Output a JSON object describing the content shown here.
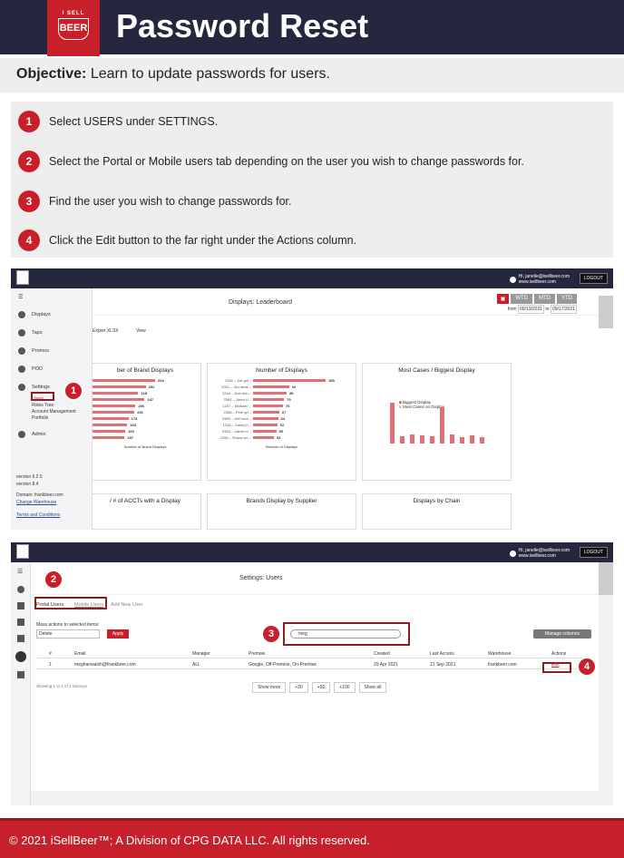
{
  "header": {
    "title": "Password Reset",
    "logo_text_top": "I SELL",
    "logo_text": "BEER"
  },
  "objective": {
    "label": "Objective:",
    "text": "Learn to update passwords for users."
  },
  "steps": [
    {
      "num": "1",
      "text": "Select USERS under SETTINGS."
    },
    {
      "num": "2",
      "text": "Select the Portal or Mobile users tab depending on the user you wish to change passwords for."
    },
    {
      "num": "3",
      "text": "Find the user you wish to change passwords for."
    },
    {
      "num": "4",
      "text": "Click the Edit button to the far right under the Actions column."
    }
  ],
  "shot1": {
    "user": "Hi, janelle@isellbeer.com",
    "site": "www.isellbeer.com",
    "logout": "LOGOUT",
    "page_title": "Displays: Leaderboard",
    "periods": [
      "WTD",
      "MTD",
      "YTD"
    ],
    "from_label": "from",
    "from": "09/13/2021",
    "to_label": "to",
    "to": "09/17/2021",
    "export": "Export XLSX",
    "view": "View",
    "sidebar": [
      "Displays",
      "Taps",
      "Promos",
      "POD",
      "Settings",
      "Admin"
    ],
    "settings_sub": [
      "Users",
      "Roles Tree",
      "Account Management",
      "Portfolio"
    ],
    "version1": "version 6.2.5",
    "version2": "version 8.4",
    "domain": "Domain: frankbeer.com",
    "change_wh": "Change Warehouse",
    "terms": "Terms and Conditions",
    "card1_title": "ber of Brand Displays",
    "card1_values": [
      "294",
      "252",
      "218",
      "247",
      "206",
      "201",
      "174",
      "168",
      "160",
      "157"
    ],
    "card1_xlabel": "Number of Brand Displays",
    "card2_title": "Number of Displays",
    "card2_labels": [
      "1246 – Joe gill...",
      "2021 – Jim ramir...",
      "2344 – Dan dou...",
      "2363 – Jared U...",
      "1207 – Michael ...",
      "2308 – Pete gri...",
      "2365 – Jeff rube...",
      "1316 – Casey b...",
      "2345 – Jaime ro...",
      "2208 – Shane wo..."
    ],
    "card2_values": [
      "185",
      "92",
      "86",
      "79",
      "76",
      "67",
      "64",
      "62",
      "59",
      "53"
    ],
    "card2_xlabel": "Number of Displays",
    "card3_title": "Most Cases / Biggest Display",
    "card3_legend": [
      "Biggest Display",
      "Most Cases on Display"
    ],
    "card4_title": "/ # of ACCTs with a Display",
    "card5_title": "Brands Display by Supplier",
    "card6_title": "Displays by Chain",
    "badge": "1"
  },
  "shot2": {
    "user": "Hi, janelle@isellbeer.com",
    "site": "www.isellbeer.com",
    "logout": "LOGOUT",
    "page_title": "Settings: Users",
    "tabs": [
      "Portal Users",
      "Mobile Users",
      "Add New User"
    ],
    "mass_label": "Mass actions to selected items:",
    "mass_select": "Delete",
    "apply": "Apply",
    "search_value": "meg",
    "manage": "Manage columns",
    "columns": [
      "#",
      "Email",
      "Manager",
      "Premise",
      "Created",
      "Last Access",
      "Warehouse",
      "Actions"
    ],
    "row": {
      "num": "1",
      "email": "meghanwalsh@frankbeer.com",
      "manager": "ALL",
      "premise": "Google, Off-Premise, On-Premise",
      "created": "29 Apr 2021",
      "last": "21 Sep 2021",
      "warehouse": "frankbeer.com",
      "action": "Edit"
    },
    "showing": "Showing 1 to 1 of 1 Surveys",
    "pager": [
      "Show more",
      "+20",
      "+50",
      "+100",
      "Show all"
    ],
    "badges": [
      "2",
      "3",
      "4"
    ]
  },
  "footer": "© 2021 iSellBeer™; A Division of CPG DATA LLC. All rights reserved."
}
